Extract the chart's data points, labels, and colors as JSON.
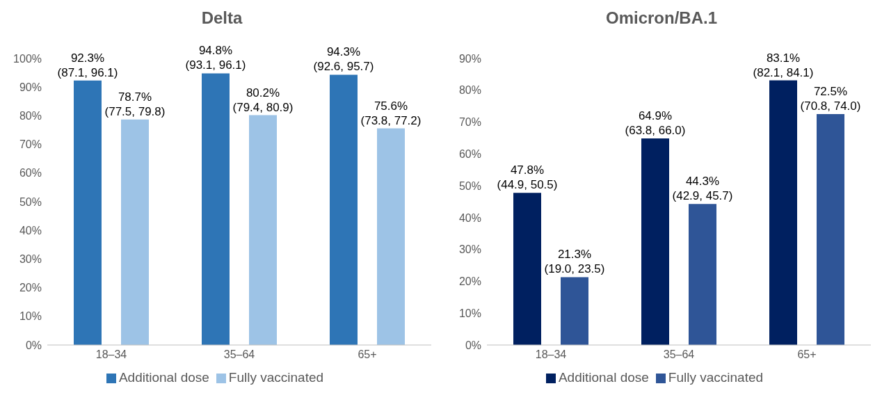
{
  "chart_data": [
    {
      "type": "bar",
      "title": "Delta",
      "categories": [
        "18–34",
        "35–64",
        "65+"
      ],
      "series": [
        {
          "name": "Additional dose",
          "color": "#2e75b6",
          "values": [
            92.3,
            94.8,
            94.3
          ],
          "value_labels": [
            "92.3%\n(87.1, 96.1)",
            "94.8%\n(93.1, 96.1)",
            "94.3%\n(92.6, 95.7)"
          ]
        },
        {
          "name": "Fully vaccinated",
          "color": "#9dc3e6",
          "values": [
            78.7,
            80.2,
            75.6
          ],
          "value_labels": [
            "78.7%\n(77.5, 79.8)",
            "80.2%\n(79.4, 80.9)",
            "75.6%\n(73.8, 77.2)"
          ]
        }
      ],
      "ylim": [
        0,
        100
      ],
      "yticks": [
        {
          "value": 0,
          "label": "0%"
        },
        {
          "value": 10,
          "label": "10%"
        },
        {
          "value": 20,
          "label": "20%"
        },
        {
          "value": 30,
          "label": "30%"
        },
        {
          "value": 40,
          "label": "40%"
        },
        {
          "value": 50,
          "label": "50%"
        },
        {
          "value": 60,
          "label": "60%"
        },
        {
          "value": 70,
          "label": "70%"
        },
        {
          "value": 80,
          "label": "80%"
        },
        {
          "value": 90,
          "label": "90%"
        },
        {
          "value": 100,
          "label": "100%"
        }
      ],
      "grid": false,
      "legend": "bottom"
    },
    {
      "type": "bar",
      "title": "Omicron/BA.1",
      "categories": [
        "18–34",
        "35–64",
        "65+"
      ],
      "series": [
        {
          "name": "Additional dose",
          "color": "#002060",
          "values": [
            47.8,
            64.9,
            83.1
          ],
          "value_labels": [
            "47.8%\n(44.9, 50.5)",
            "64.9%\n(63.8, 66.0)",
            "83.1%\n(82.1, 84.1)"
          ]
        },
        {
          "name": "Fully vaccinated",
          "color": "#2f5597",
          "values": [
            21.3,
            44.3,
            72.5
          ],
          "value_labels": [
            "21.3%\n(19.0, 23.5)",
            "44.3%\n(42.9, 45.7)",
            "72.5%\n(70.8, 74.0)"
          ]
        }
      ],
      "ylim": [
        0,
        90
      ],
      "yticks": [
        {
          "value": 0,
          "label": "0%"
        },
        {
          "value": 10,
          "label": "10%"
        },
        {
          "value": 20,
          "label": "20%"
        },
        {
          "value": 30,
          "label": "30%"
        },
        {
          "value": 40,
          "label": "40%"
        },
        {
          "value": 50,
          "label": "50%"
        },
        {
          "value": 60,
          "label": "60%"
        },
        {
          "value": 70,
          "label": "70%"
        },
        {
          "value": 80,
          "label": "80%"
        },
        {
          "value": 90,
          "label": "90%"
        }
      ],
      "grid": false,
      "legend": "bottom"
    }
  ]
}
